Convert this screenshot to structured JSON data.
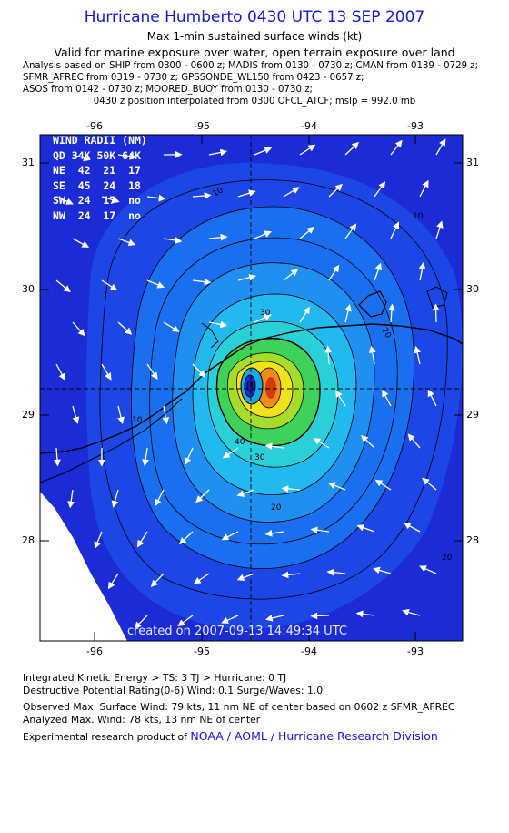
{
  "header": {
    "title": "Hurricane Humberto 0430 UTC 13 SEP 2007",
    "subtitle": "Max 1-min sustained surface winds (kt)",
    "valid": "Valid for marine exposure over water, open terrain exposure over land",
    "sources": [
      "Analysis based on  SHIP from 0300 - 0600 z;  MADIS from 0130 - 0730 z;  CMAN from 0139 - 0729 z;",
      "SFMR_AFREC from 0319 - 0730 z;  GPSSONDE_WL150 from 0423 - 0657 z;",
      "ASOS from 0142 - 0730 z;  MOORED_BUOY from 0130 - 0730 z;"
    ],
    "position_note": "0430 z position interpolated from 0300 OFCL_ATCF; mslp = 992.0 mb"
  },
  "map": {
    "lon_ticks": [
      "-96",
      "-95",
      "-94",
      "-93"
    ],
    "lat_ticks": [
      "31",
      "30",
      "29",
      "28"
    ],
    "contour_labels": [
      "10",
      "10",
      "20",
      "20",
      "30",
      "30",
      "40",
      "10",
      "20"
    ],
    "wind_radii": {
      "header": "WIND RADII (NM)",
      "columns": "QD 34K 50K 64K",
      "rows": [
        "NE  42  21  17",
        "SE  45  24  18",
        "SW  24  17  no",
        "NW  24  17  no"
      ]
    },
    "created": "created on 2007-09-13 14:49:34 UTC",
    "colors": {
      "ocean_low": "#1b2bd6",
      "ocean_mid": "#1a6ff0",
      "cyan": "#22b8f0",
      "green": "#3fd25a",
      "yellow": "#f2e21a",
      "orange": "#f08a18",
      "red": "#d43a10"
    }
  },
  "footer": {
    "ike": "Integrated Kinetic Energy > TS: 3 TJ   > Hurricane: 0 TJ",
    "dpr": "Destructive Potential Rating(0-6)   Wind: 0.1 Surge/Waves: 1.0",
    "observed": "Observed Max. Surface Wind: 79 kts, 11 nm NE of center based on 0602 z SFMR_AFREC",
    "analyzed": "Analyzed Max. Wind: 78 kts, 13 nm NE of center",
    "research_prefix": "Experimental research product of",
    "research_link": "NOAA / AOML / Hurricane Research Division"
  }
}
